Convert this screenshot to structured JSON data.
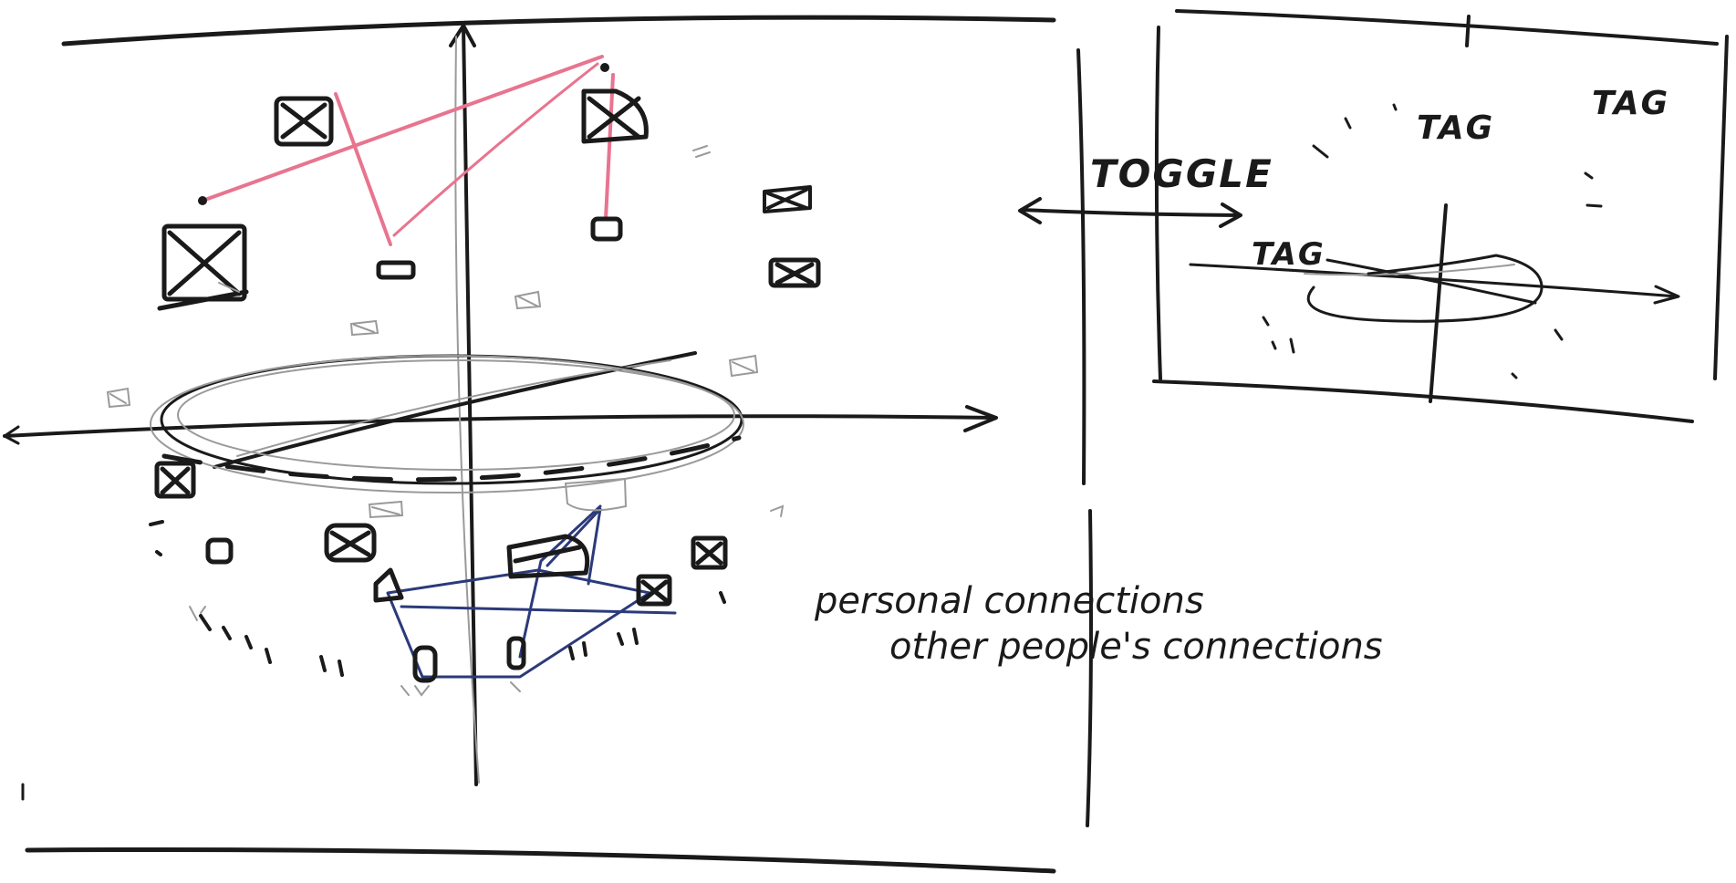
{
  "labels": {
    "toggle": "TOGGLE",
    "tag_1": "TAG",
    "tag_2": "TAG",
    "tag_3": "TAG",
    "legend_personal": "personal connections",
    "legend_others": "other people's connections"
  },
  "colors": {
    "ink": "#1a1a1a",
    "personal_connections": "#e8748f",
    "others_connections": "#2b3a7a"
  }
}
